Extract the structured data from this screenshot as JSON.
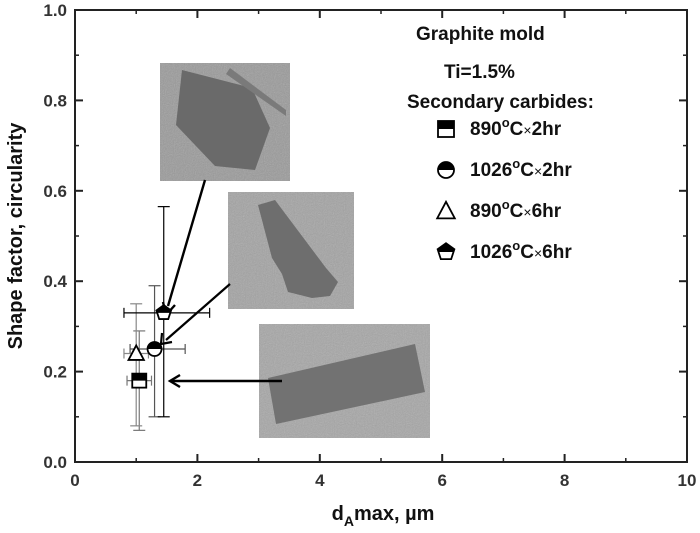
{
  "chart_data": {
    "type": "scatter",
    "xlabel": {
      "main": "d",
      "sub": "A",
      "rest": "max, µm"
    },
    "ylabel": "Shape factor, circularity",
    "xlim": [
      0,
      10
    ],
    "ylim": [
      0,
      1.0
    ],
    "xticks": [
      "0",
      "2",
      "4",
      "6",
      "8",
      "10"
    ],
    "yticks": [
      "0.0",
      "0.2",
      "0.4",
      "0.6",
      "0.8",
      "1.0"
    ],
    "legend_placement": "top-right",
    "annotations": [
      "Graphite mold",
      "Ti=1.5%",
      "Secondary carbides:"
    ],
    "series": [
      {
        "name": "890°C×2hr",
        "temp": "890",
        "time": "2hr",
        "marker": "square-half",
        "x": 1.05,
        "y": 0.18,
        "xerr": [
          0.85,
          1.25
        ],
        "yerr": [
          0.07,
          0.29
        ]
      },
      {
        "name": "1026°C×2hr",
        "temp": "1026",
        "time": "2hr",
        "marker": "circle-half",
        "x": 1.3,
        "y": 0.25,
        "xerr": [
          0.9,
          1.8
        ],
        "yerr": [
          0.1,
          0.39
        ]
      },
      {
        "name": "890°C×6hr",
        "temp": "890",
        "time": "6hr",
        "marker": "triangle",
        "x": 1.0,
        "y": 0.24,
        "xerr": [
          0.8,
          1.2
        ],
        "yerr": [
          0.08,
          0.35
        ]
      },
      {
        "name": "1026°C×6hr",
        "temp": "1026",
        "time": "6hr",
        "marker": "pentagon-half",
        "x": 1.45,
        "y": 0.33,
        "xerr": [
          0.8,
          2.2
        ],
        "yerr": [
          0.1,
          0.565
        ]
      }
    ],
    "micrographs": [
      {
        "name": "micrograph-1",
        "points_to": "1026°C×6hr"
      },
      {
        "name": "micrograph-2",
        "points_to": "1026°C×2hr"
      },
      {
        "name": "micrograph-3",
        "points_to": "890°C×2hr"
      }
    ]
  }
}
